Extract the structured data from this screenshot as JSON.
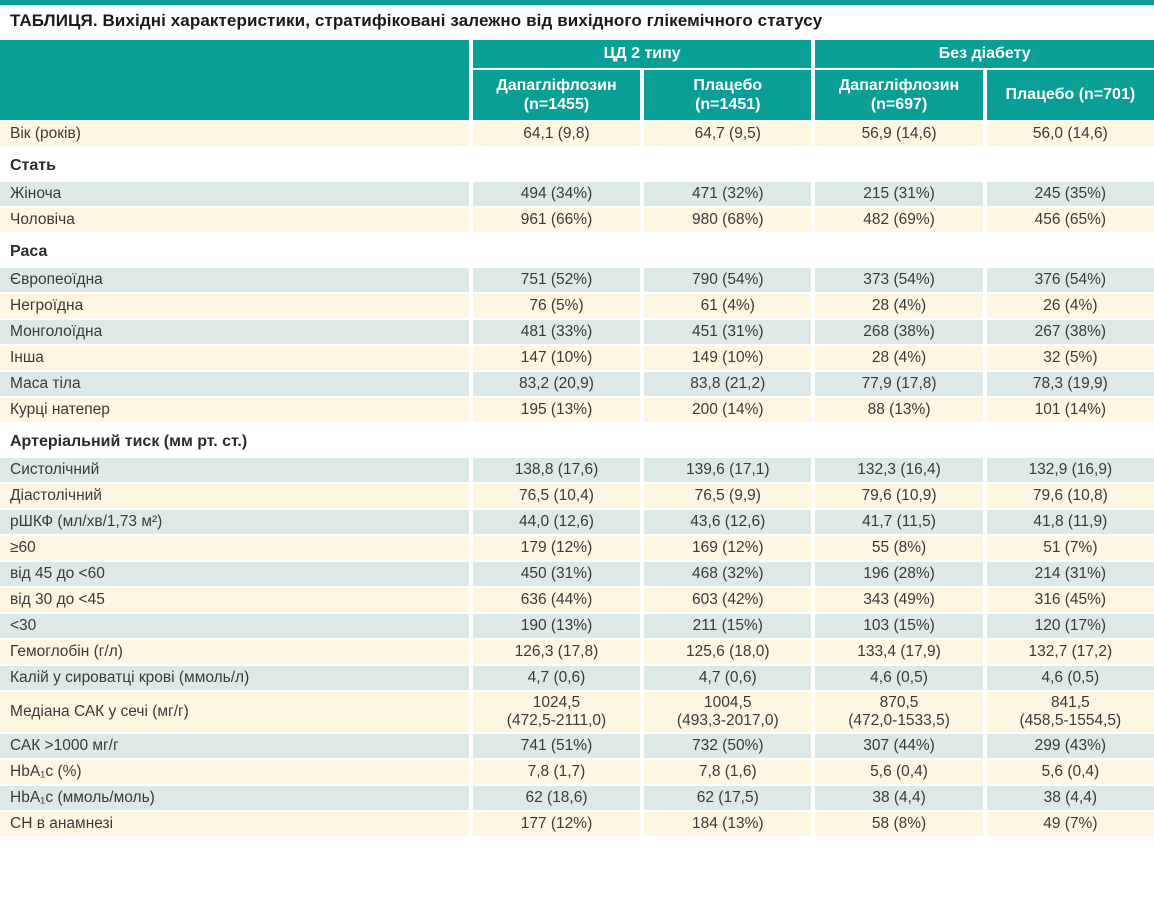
{
  "title": "ТАБЛИЦЯ. Вихідні характеристики, стратифіковані залежно від вихідного глікемічного статусу",
  "colors": {
    "accent_teal": "#0a9f96",
    "row_cream": "#fdf6e1",
    "row_pale_teal": "#dde9e6",
    "header_text": "#ffffff",
    "body_text": "#3a3a3a"
  },
  "header": {
    "groups": [
      {
        "label": "ЦД 2 типу"
      },
      {
        "label": "Без діабету"
      }
    ],
    "columns": [
      "Дапагліфлозин\n(n=1455)",
      "Плацебо\n(n=1451)",
      "Дапагліфлозин\n(n=697)",
      "Плацебо (n=701)"
    ]
  },
  "rows": [
    {
      "type": "data",
      "shade": "cream",
      "label": "Вік (років)",
      "values": [
        "64,1 (9,8)",
        "64,7 (9,5)",
        "56,9 (14,6)",
        "56,0 (14,6)"
      ]
    },
    {
      "type": "section",
      "label": "Стать"
    },
    {
      "type": "data",
      "shade": "teal",
      "label": "Жіноча",
      "values": [
        "494 (34%)",
        "471 (32%)",
        "215 (31%)",
        "245 (35%)"
      ]
    },
    {
      "type": "data",
      "shade": "cream",
      "label": "Чоловіча",
      "values": [
        "961 (66%)",
        "980 (68%)",
        "482 (69%)",
        "456 (65%)"
      ]
    },
    {
      "type": "section",
      "label": "Раса"
    },
    {
      "type": "data",
      "shade": "teal",
      "label": "Європеоїдна",
      "values": [
        "751 (52%)",
        "790 (54%)",
        "373 (54%)",
        "376 (54%)"
      ]
    },
    {
      "type": "data",
      "shade": "cream",
      "label": "Негроїдна",
      "values": [
        "76 (5%)",
        "61 (4%)",
        "28 (4%)",
        "26 (4%)"
      ]
    },
    {
      "type": "data",
      "shade": "teal",
      "label": "Монголоїдна",
      "values": [
        "481 (33%)",
        "451 (31%)",
        "268 (38%)",
        "267 (38%)"
      ]
    },
    {
      "type": "data",
      "shade": "cream",
      "label": "Інша",
      "values": [
        "147 (10%)",
        "149 (10%)",
        "28 (4%)",
        "32 (5%)"
      ]
    },
    {
      "type": "data",
      "shade": "teal",
      "label": "Маса тіла",
      "values": [
        "83,2 (20,9)",
        "83,8 (21,2)",
        "77,9 (17,8)",
        "78,3 (19,9)"
      ]
    },
    {
      "type": "data",
      "shade": "cream",
      "label": "Курці натепер",
      "values": [
        "195 (13%)",
        "200 (14%)",
        "88 (13%)",
        "101 (14%)"
      ]
    },
    {
      "type": "section",
      "label": "Артеріальний тиск (мм рт. ст.)"
    },
    {
      "type": "data",
      "shade": "teal",
      "label": "Систолічний",
      "values": [
        "138,8 (17,6)",
        "139,6 (17,1)",
        "132,3 (16,4)",
        "132,9 (16,9)"
      ]
    },
    {
      "type": "data",
      "shade": "cream",
      "label": "Діастолічний",
      "values": [
        "76,5 (10,4)",
        "76,5 (9,9)",
        "79,6 (10,9)",
        "79,6 (10,8)"
      ]
    },
    {
      "type": "data",
      "shade": "teal",
      "label": "рШКФ (мл/хв/1,73 м²)",
      "values": [
        "44,0 (12,6)",
        "43,6 (12,6)",
        "41,7 (11,5)",
        "41,8 (11,9)"
      ]
    },
    {
      "type": "data",
      "shade": "cream",
      "label": "≥60",
      "values": [
        "179 (12%)",
        "169 (12%)",
        "55 (8%)",
        "51 (7%)"
      ]
    },
    {
      "type": "data",
      "shade": "teal",
      "label": "від 45 до <60",
      "values": [
        "450 (31%)",
        "468 (32%)",
        "196 (28%)",
        "214 (31%)"
      ]
    },
    {
      "type": "data",
      "shade": "cream",
      "label": "від 30 до <45",
      "values": [
        "636 (44%)",
        "603 (42%)",
        "343 (49%)",
        "316 (45%)"
      ]
    },
    {
      "type": "data",
      "shade": "teal",
      "label": "<30",
      "values": [
        "190 (13%)",
        "211 (15%)",
        "103 (15%)",
        "120 (17%)"
      ]
    },
    {
      "type": "data",
      "shade": "cream",
      "label": "Гемоглобін (г/л)",
      "values": [
        "126,3 (17,8)",
        "125,6 (18,0)",
        "133,4 (17,9)",
        "132,7 (17,2)"
      ]
    },
    {
      "type": "data",
      "shade": "teal",
      "label": "Калій у сироватці крові (ммоль/л)",
      "values": [
        "4,7 (0,6)",
        "4,7 (0,6)",
        "4,6 (0,5)",
        "4,6 (0,5)"
      ]
    },
    {
      "type": "data",
      "shade": "cream",
      "label": "Медіана САК у сечі (мг/г)",
      "values": [
        "1024,5\n(472,5-2111,0)",
        "1004,5\n(493,3-2017,0)",
        "870,5\n(472,0-1533,5)",
        "841,5\n(458,5-1554,5)"
      ]
    },
    {
      "type": "data",
      "shade": "teal",
      "label": "САК >1000 мг/г",
      "values": [
        "741 (51%)",
        "732 (50%)",
        "307 (44%)",
        "299 (43%)"
      ]
    },
    {
      "type": "data",
      "shade": "cream",
      "label": "HbA₁c (%)",
      "values": [
        "7,8 (1,7)",
        "7,8 (1,6)",
        "5,6 (0,4)",
        "5,6 (0,4)"
      ]
    },
    {
      "type": "data",
      "shade": "teal",
      "label": "HbA₁c (ммоль/моль)",
      "values": [
        "62 (18,6)",
        "62 (17,5)",
        "38 (4,4)",
        "38 (4,4)"
      ]
    },
    {
      "type": "data",
      "shade": "cream",
      "label": "СН в анамнезі",
      "values": [
        "177 (12%)",
        "184 (13%)",
        "58 (8%)",
        "49 (7%)"
      ]
    }
  ]
}
